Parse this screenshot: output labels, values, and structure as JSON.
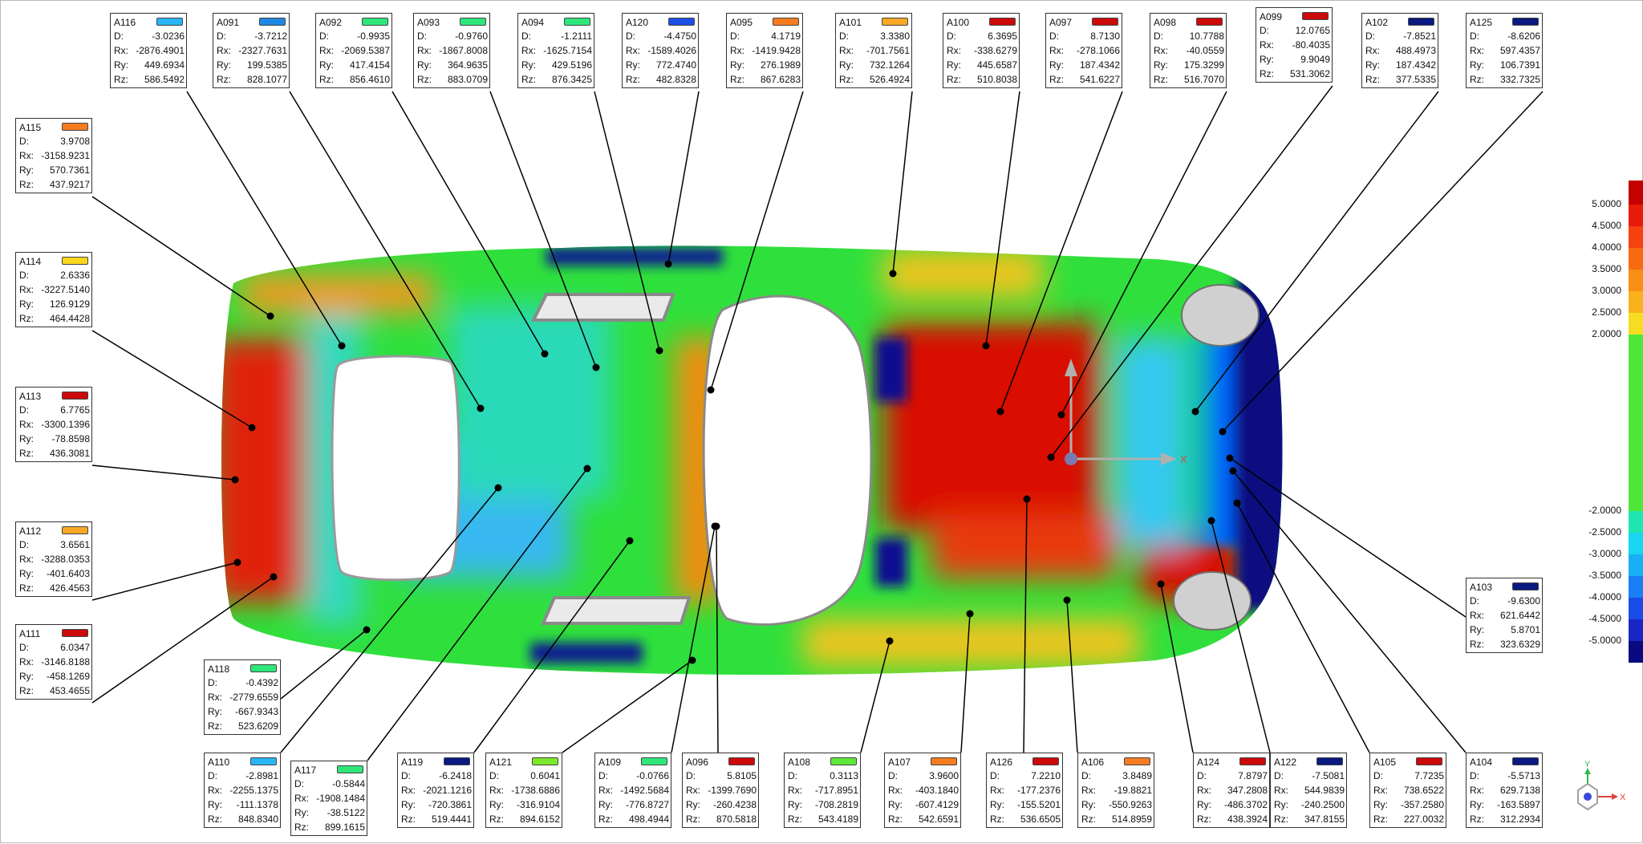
{
  "points": [
    {
      "id": "A116",
      "color": "#29b6f6",
      "D": "-3.0236",
      "Rx": "-2876.4901",
      "Ry": "449.6934",
      "Rz": "586.5492"
    },
    {
      "id": "A091",
      "color": "#1e88e5",
      "D": "-3.7212",
      "Rx": "-2327.7631",
      "Ry": "199.5385",
      "Rz": "828.1077"
    },
    {
      "id": "A092",
      "color": "#2ee67a",
      "D": "-0.9935",
      "Rx": "-2069.5387",
      "Ry": "417.4154",
      "Rz": "856.4610"
    },
    {
      "id": "A093",
      "color": "#2ee67a",
      "D": "-0.9760",
      "Rx": "-1867.8008",
      "Ry": "364.9635",
      "Rz": "883.0709"
    },
    {
      "id": "A094",
      "color": "#2ee67a",
      "D": "-1.2111",
      "Rx": "-1625.7154",
      "Ry": "429.5196",
      "Rz": "876.3425"
    },
    {
      "id": "A120",
      "color": "#1e4fe6",
      "D": "-4.4750",
      "Rx": "-1589.4026",
      "Ry": "772.4740",
      "Rz": "482.8328"
    },
    {
      "id": "A095",
      "color": "#f57c20",
      "D": "4.1719",
      "Rx": "-1419.9428",
      "Ry": "276.1989",
      "Rz": "867.6283"
    },
    {
      "id": "A101",
      "color": "#f9a825",
      "D": "3.3380",
      "Rx": "-701.7561",
      "Ry": "732.1264",
      "Rz": "526.4924"
    },
    {
      "id": "A100",
      "color": "#cc0a0a",
      "D": "6.3695",
      "Rx": "-338.6279",
      "Ry": "445.6587",
      "Rz": "510.8038"
    },
    {
      "id": "A097",
      "color": "#cc0a0a",
      "D": "8.7130",
      "Rx": "-278.1066",
      "Ry": "187.4342",
      "Rz": "541.6227"
    },
    {
      "id": "A098",
      "color": "#cc0a0a",
      "D": "10.7788",
      "Rx": "-40.0559",
      "Ry": "175.3299",
      "Rz": "516.7070"
    },
    {
      "id": "A099",
      "color": "#cc0a0a",
      "D": "12.0765",
      "Rx": "-80.4035",
      "Ry": "9.9049",
      "Rz": "531.3062"
    },
    {
      "id": "A102",
      "color": "#0a1a80",
      "D": "-7.8521",
      "Rx": "488.4973",
      "Ry": "187.4342",
      "Rz": "377.5335"
    },
    {
      "id": "A125",
      "color": "#0a1a80",
      "D": "-8.6206",
      "Rx": "597.4357",
      "Ry": "106.7391",
      "Rz": "332.7325"
    },
    {
      "id": "A115",
      "color": "#f57c20",
      "D": "3.9708",
      "Rx": "-3158.9231",
      "Ry": "570.7361",
      "Rz": "437.9217"
    },
    {
      "id": "A114",
      "color": "#f9d71c",
      "D": "2.6336",
      "Rx": "-3227.5140",
      "Ry": "126.9129",
      "Rz": "464.4428"
    },
    {
      "id": "A113",
      "color": "#cc0a0a",
      "D": "6.7765",
      "Rx": "-3300.1396",
      "Ry": "-78.8598",
      "Rz": "436.3081"
    },
    {
      "id": "A112",
      "color": "#f9a825",
      "D": "3.6561",
      "Rx": "-3288.0353",
      "Ry": "-401.6403",
      "Rz": "426.4563"
    },
    {
      "id": "A111",
      "color": "#cc0a0a",
      "D": "6.0347",
      "Rx": "-3146.8188",
      "Ry": "-458.1269",
      "Rz": "453.4655"
    },
    {
      "id": "A118",
      "color": "#2ee67a",
      "D": "-0.4392",
      "Rx": "-2779.6559",
      "Ry": "-667.9343",
      "Rz": "523.6209"
    },
    {
      "id": "A103",
      "color": "#0a1a80",
      "D": "-9.6300",
      "Rx": "621.6442",
      "Ry": "5.8701",
      "Rz": "323.6329"
    },
    {
      "id": "A110",
      "color": "#29b6f6",
      "D": "-2.8981",
      "Rx": "-2255.1375",
      "Ry": "-111.1378",
      "Rz": "848.8340"
    },
    {
      "id": "A117",
      "color": "#2ee67a",
      "D": "-0.5844",
      "Rx": "-1908.1484",
      "Ry": "-38.5122",
      "Rz": "899.1615"
    },
    {
      "id": "A119",
      "color": "#0a1a80",
      "D": "-6.2418",
      "Rx": "-2021.1216",
      "Ry": "-720.3861",
      "Rz": "519.4441"
    },
    {
      "id": "A121",
      "color": "#7ee82a",
      "D": "0.6041",
      "Rx": "-1738.6886",
      "Ry": "-316.9104",
      "Rz": "894.6152"
    },
    {
      "id": "A109",
      "color": "#2ee67a",
      "D": "-0.0766",
      "Rx": "-1492.5684",
      "Ry": "-776.8727",
      "Rz": "498.4944"
    },
    {
      "id": "A096",
      "color": "#cc0a0a",
      "D": "5.8105",
      "Rx": "-1399.7690",
      "Ry": "-260.4238",
      "Rz": "870.5818"
    },
    {
      "id": "A108",
      "color": "#5ee83a",
      "D": "0.3113",
      "Rx": "-717.8951",
      "Ry": "-708.2819",
      "Rz": "543.4189"
    },
    {
      "id": "A107",
      "color": "#f57c20",
      "D": "3.9600",
      "Rx": "-403.1840",
      "Ry": "-607.4129",
      "Rz": "542.6591"
    },
    {
      "id": "A126",
      "color": "#cc0a0a",
      "D": "7.2210",
      "Rx": "-177.2376",
      "Ry": "-155.5201",
      "Rz": "536.6505"
    },
    {
      "id": "A106",
      "color": "#f57c20",
      "D": "3.8489",
      "Rx": "-19.8821",
      "Ry": "-550.9263",
      "Rz": "514.8959"
    },
    {
      "id": "A124",
      "color": "#cc0a0a",
      "D": "7.8797",
      "Rx": "347.2808",
      "Ry": "-486.3702",
      "Rz": "438.3924"
    },
    {
      "id": "A122",
      "color": "#0a1a80",
      "D": "-7.5081",
      "Rx": "544.9839",
      "Ry": "-240.2500",
      "Rz": "347.8155"
    },
    {
      "id": "A105",
      "color": "#cc0a0a",
      "D": "7.7235",
      "Rx": "738.6522",
      "Ry": "-357.2580",
      "Rz": "227.0032"
    },
    {
      "id": "A104",
      "color": "#0a1a80",
      "D": "-5.5713",
      "Rx": "629.7138",
      "Ry": "-163.5897",
      "Rz": "312.2934"
    }
  ],
  "legend": {
    "ticks": [
      "5.0000",
      "4.5000",
      "4.0000",
      "3.5000",
      "3.0000",
      "2.5000",
      "2.0000",
      "-2.0000",
      "-2.5000",
      "-3.0000",
      "-3.5000",
      "-4.0000",
      "-4.5000",
      "-5.0000"
    ],
    "colors": [
      "#c40000",
      "#e81a0a",
      "#f5420f",
      "#f76a12",
      "#f88e16",
      "#f9b11c",
      "#f6dd22",
      "#4fe83a",
      "#1ee6b0",
      "#18d6f0",
      "#17b0f5",
      "#1a7ef5",
      "#1a4ce6",
      "#1a26c4",
      "#0a0a80"
    ]
  },
  "axes": {
    "model_x": "X",
    "triad_x": "X",
    "triad_y": "Y"
  }
}
